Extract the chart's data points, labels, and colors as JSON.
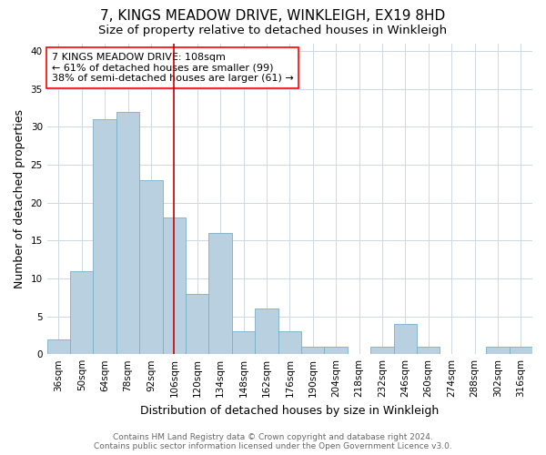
{
  "title": "7, KINGS MEADOW DRIVE, WINKLEIGH, EX19 8HD",
  "subtitle": "Size of property relative to detached houses in Winkleigh",
  "xlabel": "Distribution of detached houses by size in Winkleigh",
  "ylabel": "Number of detached properties",
  "categories": [
    "36sqm",
    "50sqm",
    "64sqm",
    "78sqm",
    "92sqm",
    "106sqm",
    "120sqm",
    "134sqm",
    "148sqm",
    "162sqm",
    "176sqm",
    "190sqm",
    "204sqm",
    "218sqm",
    "232sqm",
    "246sqm",
    "260sqm",
    "274sqm",
    "288sqm",
    "302sqm",
    "316sqm"
  ],
  "values": [
    2,
    11,
    31,
    32,
    23,
    18,
    8,
    16,
    3,
    6,
    3,
    1,
    1,
    0,
    1,
    4,
    1,
    0,
    0,
    1,
    1
  ],
  "bar_color": "#b8d0e0",
  "bar_edge_color": "#7aafc8",
  "vline_color": "#cc0000",
  "vline_index": 5,
  "annotation_text": "7 KINGS MEADOW DRIVE: 108sqm\n← 61% of detached houses are smaller (99)\n38% of semi-detached houses are larger (61) →",
  "ylim": [
    0,
    41
  ],
  "yticks": [
    0,
    5,
    10,
    15,
    20,
    25,
    30,
    35,
    40
  ],
  "footer_line1": "Contains HM Land Registry data © Crown copyright and database right 2024.",
  "footer_line2": "Contains public sector information licensed under the Open Government Licence v3.0.",
  "title_fontsize": 11,
  "subtitle_fontsize": 9.5,
  "axis_label_fontsize": 9,
  "tick_fontsize": 7.5,
  "annotation_fontsize": 8,
  "footer_fontsize": 6.5,
  "background_color": "#ffffff",
  "grid_color": "#d0d8e0"
}
